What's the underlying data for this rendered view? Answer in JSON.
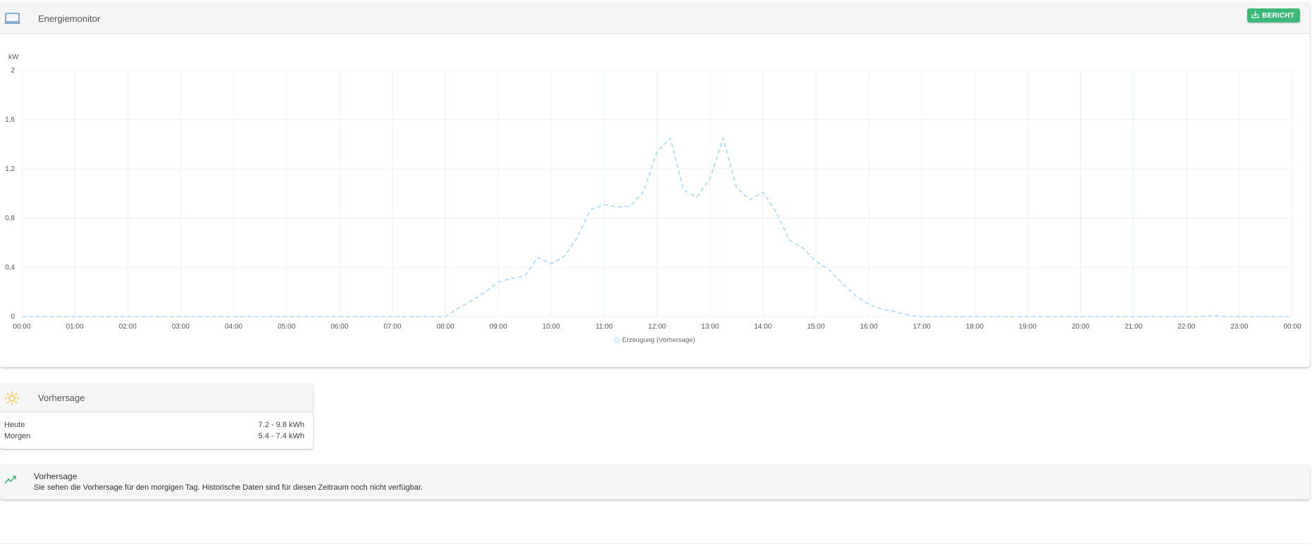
{
  "header": {
    "title": "Energiemonitor",
    "report_button": "BERICHT"
  },
  "chart_data": {
    "type": "line",
    "ylabel": "kW",
    "ylim": [
      0,
      2
    ],
    "yticks": [
      "0",
      "0,4",
      "0,8",
      "1,2",
      "1,6",
      "2"
    ],
    "xticks": [
      "00:00",
      "01:00",
      "02:00",
      "03:00",
      "04:00",
      "05:00",
      "06:00",
      "07:00",
      "08:00",
      "09:00",
      "10:00",
      "11:00",
      "12:00",
      "13:00",
      "14:00",
      "15:00",
      "16:00",
      "17:00",
      "18:00",
      "19:00",
      "20:00",
      "21:00",
      "22:00",
      "23:00",
      "00:00"
    ],
    "grid": true,
    "legend": "bottom-center",
    "series": [
      {
        "name": "Erzeugung (Vorhersage)",
        "color": "#a9d8f5",
        "style": "dashed",
        "x": [
          0,
          8.0,
          8.25,
          8.5,
          8.75,
          9.0,
          9.25,
          9.5,
          9.75,
          10.0,
          10.25,
          10.5,
          10.75,
          11.0,
          11.25,
          11.5,
          11.75,
          12.0,
          12.25,
          12.5,
          12.75,
          13.0,
          13.25,
          13.5,
          13.75,
          14.0,
          14.25,
          14.5,
          14.75,
          15.0,
          15.25,
          15.5,
          15.75,
          16.0,
          16.25,
          16.5,
          16.75,
          17.0,
          17.25,
          17.5,
          22.0,
          22.25,
          22.5,
          22.75,
          24
        ],
        "y": [
          0,
          0,
          0.07,
          0.13,
          0.2,
          0.28,
          0.31,
          0.33,
          0.48,
          0.43,
          0.49,
          0.65,
          0.87,
          0.91,
          0.89,
          0.9,
          1.02,
          1.34,
          1.45,
          1.03,
          0.97,
          1.12,
          1.45,
          1.05,
          0.95,
          1.01,
          0.85,
          0.62,
          0.56,
          0.45,
          0.38,
          0.27,
          0.17,
          0.1,
          0.06,
          0.04,
          0.01,
          0,
          0,
          0,
          0,
          0,
          0.01,
          0,
          0
        ]
      }
    ]
  },
  "forecast": {
    "title": "Vorhersage",
    "rows": [
      {
        "label": "Heute",
        "value": "7.2 - 9.8 kWh"
      },
      {
        "label": "Morgen",
        "value": "5.4 - 7.4 kWh"
      }
    ]
  },
  "info": {
    "title": "Vorhersage",
    "text": "Sie sehen die Vorhersage für den morgigen Tag. Historische Daten sind für diesen Zeitraum noch nicht verfügbar."
  },
  "colors": {
    "accent_green": "#3cb878",
    "line_blue": "#a9d8f5",
    "sun_yellow": "#f5c342",
    "icon_blue": "#5b8fc7"
  },
  "icons": {
    "monitor": "laptop-icon",
    "report": "download-icon",
    "forecast": "sun-icon",
    "info": "trend-icon"
  }
}
